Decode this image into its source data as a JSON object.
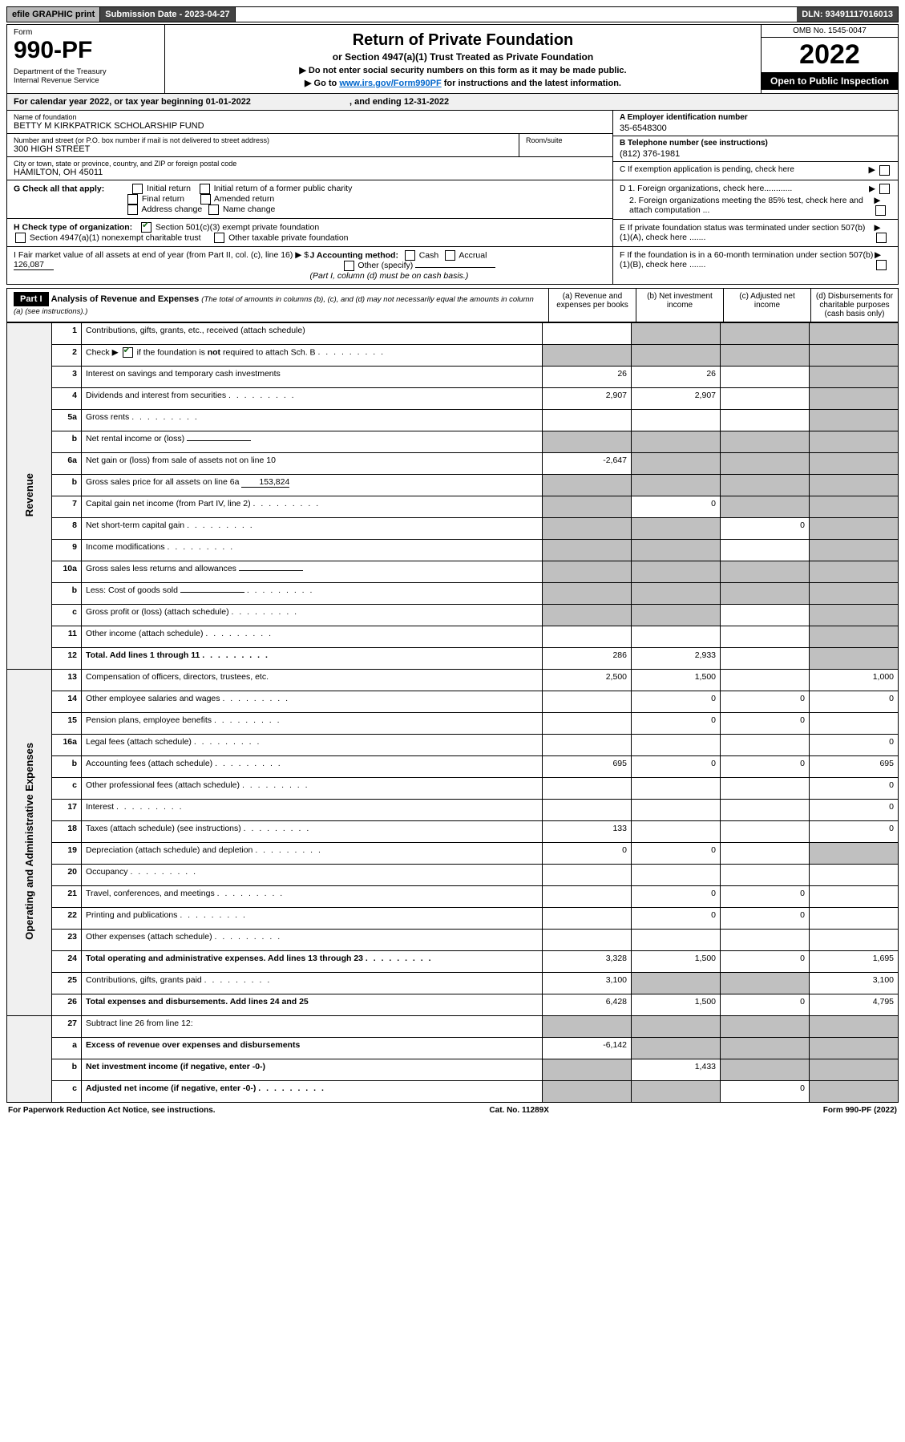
{
  "colors": {
    "bg": "#ffffff",
    "text": "#000000",
    "header_dark": "#444444",
    "header_gray": "#b8b8b8",
    "black": "#000000",
    "shade": "#c0c0c0",
    "light": "#f0f0f0",
    "link": "#0066cc",
    "check": "#1a6b1a"
  },
  "topbar": {
    "efile": "efile GRAPHIC print",
    "submission_label": "Submission Date - 2023-04-27",
    "dln": "DLN: 93491117016013"
  },
  "header": {
    "form_label": "Form",
    "form_number": "990-PF",
    "dept": "Department of the Treasury\nInternal Revenue Service",
    "title": "Return of Private Foundation",
    "subtitle1": "or Section 4947(a)(1) Trust Treated as Private Foundation",
    "subtitle2": "▶ Do not enter social security numbers on this form as it may be made public.",
    "subtitle3_pre": "▶ Go to ",
    "subtitle3_link": "www.irs.gov/Form990PF",
    "subtitle3_post": " for instructions and the latest information.",
    "omb": "OMB No. 1545-0047",
    "year": "2022",
    "open": "Open to Public Inspection"
  },
  "cal_year": {
    "pre": "For calendar year 2022, or tax year beginning ",
    "begin": "01-01-2022",
    "mid": " , and ending ",
    "end": "12-31-2022"
  },
  "ident": {
    "name_label": "Name of foundation",
    "name": "BETTY M KIRKPATRICK SCHOLARSHIP FUND",
    "addr_label": "Number and street (or P.O. box number if mail is not delivered to street address)",
    "room_label": "Room/suite",
    "addr": "300 HIGH STREET",
    "city_label": "City or town, state or province, country, and ZIP or foreign postal code",
    "city": "HAMILTON, OH  45011",
    "ein_label": "A Employer identification number",
    "ein": "35-6548300",
    "phone_label": "B Telephone number (see instructions)",
    "phone": "(812) 376-1981",
    "c_label": "C If exemption application is pending, check here"
  },
  "checks": {
    "g_label": "G Check all that apply:",
    "g_opts": [
      "Initial return",
      "Initial return of a former public charity",
      "Final return",
      "Amended return",
      "Address change",
      "Name change"
    ],
    "h_label": "H Check type of organization:",
    "h1": "Section 501(c)(3) exempt private foundation",
    "h2": "Section 4947(a)(1) nonexempt charitable trust",
    "h3": "Other taxable private foundation",
    "i_label": "I Fair market value of all assets at end of year (from Part II, col. (c), line 16) ▶ $",
    "i_value": "126,087",
    "j_label": "J Accounting method:",
    "j_opts": [
      "Cash",
      "Accrual"
    ],
    "j_other": "Other (specify)",
    "j_note": "(Part I, column (d) must be on cash basis.)",
    "d1": "D 1. Foreign organizations, check here............",
    "d2": "2. Foreign organizations meeting the 85% test, check here and attach computation ...",
    "e": "E  If private foundation status was terminated under section 507(b)(1)(A), check here .......",
    "f": "F  If the foundation is in a 60-month termination under section 507(b)(1)(B), check here .......",
    "h1_checked": true
  },
  "part1": {
    "label": "Part I",
    "title": "Analysis of Revenue and Expenses",
    "note": "(The total of amounts in columns (b), (c), and (d) may not necessarily equal the amounts in column (a) (see instructions).)",
    "col_a": "(a) Revenue and expenses per books",
    "col_b": "(b) Net investment income",
    "col_c": "(c) Adjusted net income",
    "col_d": "(d) Disbursements for charitable purposes (cash basis only)"
  },
  "sections": {
    "revenue": "Revenue",
    "opex": "Operating and Administrative Expenses"
  },
  "rows": [
    {
      "ln": "1",
      "desc": "Contributions, gifts, grants, etc., received (attach schedule)",
      "a": "",
      "b": "shade",
      "c": "shade",
      "d": "shade"
    },
    {
      "ln": "2",
      "desc": "Check ▶ ✔ if the foundation is not required to attach Sch. B",
      "a": "shade",
      "b": "shade",
      "c": "shade",
      "d": "shade",
      "dots": true,
      "check": true
    },
    {
      "ln": "3",
      "desc": "Interest on savings and temporary cash investments",
      "a": "26",
      "b": "26",
      "c": "",
      "d": "shade"
    },
    {
      "ln": "4",
      "desc": "Dividends and interest from securities",
      "a": "2,907",
      "b": "2,907",
      "c": "",
      "d": "shade",
      "dots": true
    },
    {
      "ln": "5a",
      "desc": "Gross rents",
      "a": "",
      "b": "",
      "c": "",
      "d": "shade",
      "dots": true
    },
    {
      "ln": "b",
      "desc": "Net rental income or (loss)",
      "a": "shade",
      "b": "shade",
      "c": "shade",
      "d": "shade",
      "inline_blank": true
    },
    {
      "ln": "6a",
      "desc": "Net gain or (loss) from sale of assets not on line 10",
      "a": "-2,647",
      "b": "shade",
      "c": "shade",
      "d": "shade"
    },
    {
      "ln": "b",
      "desc": "Gross sales price for all assets on line 6a",
      "a": "shade",
      "b": "shade",
      "c": "shade",
      "d": "shade",
      "inline_val": "153,824"
    },
    {
      "ln": "7",
      "desc": "Capital gain net income (from Part IV, line 2)",
      "a": "shade",
      "b": "0",
      "c": "shade",
      "d": "shade",
      "dots": true
    },
    {
      "ln": "8",
      "desc": "Net short-term capital gain",
      "a": "shade",
      "b": "shade",
      "c": "0",
      "d": "shade",
      "dots": true
    },
    {
      "ln": "9",
      "desc": "Income modifications",
      "a": "shade",
      "b": "shade",
      "c": "",
      "d": "shade",
      "dots": true
    },
    {
      "ln": "10a",
      "desc": "Gross sales less returns and allowances",
      "a": "shade",
      "b": "shade",
      "c": "shade",
      "d": "shade",
      "inline_blank": true
    },
    {
      "ln": "b",
      "desc": "Less: Cost of goods sold",
      "a": "shade",
      "b": "shade",
      "c": "shade",
      "d": "shade",
      "inline_blank": true,
      "dots": true
    },
    {
      "ln": "c",
      "desc": "Gross profit or (loss) (attach schedule)",
      "a": "shade",
      "b": "shade",
      "c": "",
      "d": "shade",
      "dots": true
    },
    {
      "ln": "11",
      "desc": "Other income (attach schedule)",
      "a": "",
      "b": "",
      "c": "",
      "d": "shade",
      "dots": true
    },
    {
      "ln": "12",
      "desc": "Total. Add lines 1 through 11",
      "a": "286",
      "b": "2,933",
      "c": "",
      "d": "shade",
      "bold": true,
      "dots": true
    }
  ],
  "rows2": [
    {
      "ln": "13",
      "desc": "Compensation of officers, directors, trustees, etc.",
      "a": "2,500",
      "b": "1,500",
      "c": "",
      "d": "1,000"
    },
    {
      "ln": "14",
      "desc": "Other employee salaries and wages",
      "a": "",
      "b": "0",
      "c": "0",
      "d": "0",
      "dots": true
    },
    {
      "ln": "15",
      "desc": "Pension plans, employee benefits",
      "a": "",
      "b": "0",
      "c": "0",
      "d": "",
      "dots": true
    },
    {
      "ln": "16a",
      "desc": "Legal fees (attach schedule)",
      "a": "",
      "b": "",
      "c": "",
      "d": "0",
      "dots": true
    },
    {
      "ln": "b",
      "desc": "Accounting fees (attach schedule)",
      "a": "695",
      "b": "0",
      "c": "0",
      "d": "695",
      "dots": true
    },
    {
      "ln": "c",
      "desc": "Other professional fees (attach schedule)",
      "a": "",
      "b": "",
      "c": "",
      "d": "0",
      "dots": true
    },
    {
      "ln": "17",
      "desc": "Interest",
      "a": "",
      "b": "",
      "c": "",
      "d": "0",
      "dots": true
    },
    {
      "ln": "18",
      "desc": "Taxes (attach schedule) (see instructions)",
      "a": "133",
      "b": "",
      "c": "",
      "d": "0",
      "dots": true
    },
    {
      "ln": "19",
      "desc": "Depreciation (attach schedule) and depletion",
      "a": "0",
      "b": "0",
      "c": "",
      "d": "shade",
      "dots": true
    },
    {
      "ln": "20",
      "desc": "Occupancy",
      "a": "",
      "b": "",
      "c": "",
      "d": "",
      "dots": true
    },
    {
      "ln": "21",
      "desc": "Travel, conferences, and meetings",
      "a": "",
      "b": "0",
      "c": "0",
      "d": "",
      "dots": true
    },
    {
      "ln": "22",
      "desc": "Printing and publications",
      "a": "",
      "b": "0",
      "c": "0",
      "d": "",
      "dots": true
    },
    {
      "ln": "23",
      "desc": "Other expenses (attach schedule)",
      "a": "",
      "b": "",
      "c": "",
      "d": "",
      "dots": true
    },
    {
      "ln": "24",
      "desc": "Total operating and administrative expenses. Add lines 13 through 23",
      "a": "3,328",
      "b": "1,500",
      "c": "0",
      "d": "1,695",
      "bold": true,
      "dots": true
    },
    {
      "ln": "25",
      "desc": "Contributions, gifts, grants paid",
      "a": "3,100",
      "b": "shade",
      "c": "shade",
      "d": "3,100",
      "dots": true
    },
    {
      "ln": "26",
      "desc": "Total expenses and disbursements. Add lines 24 and 25",
      "a": "6,428",
      "b": "1,500",
      "c": "0",
      "d": "4,795",
      "bold": true
    }
  ],
  "rows3": [
    {
      "ln": "27",
      "desc": "Subtract line 26 from line 12:",
      "a": "shade",
      "b": "shade",
      "c": "shade",
      "d": "shade"
    },
    {
      "ln": "a",
      "desc": "Excess of revenue over expenses and disbursements",
      "a": "-6,142",
      "b": "shade",
      "c": "shade",
      "d": "shade",
      "bold": true
    },
    {
      "ln": "b",
      "desc": "Net investment income (if negative, enter -0-)",
      "a": "shade",
      "b": "1,433",
      "c": "shade",
      "d": "shade",
      "bold": true
    },
    {
      "ln": "c",
      "desc": "Adjusted net income (if negative, enter -0-)",
      "a": "shade",
      "b": "shade",
      "c": "0",
      "d": "shade",
      "bold": true,
      "dots": true
    }
  ],
  "footer": {
    "left": "For Paperwork Reduction Act Notice, see instructions.",
    "mid": "Cat. No. 11289X",
    "right": "Form 990-PF (2022)"
  }
}
